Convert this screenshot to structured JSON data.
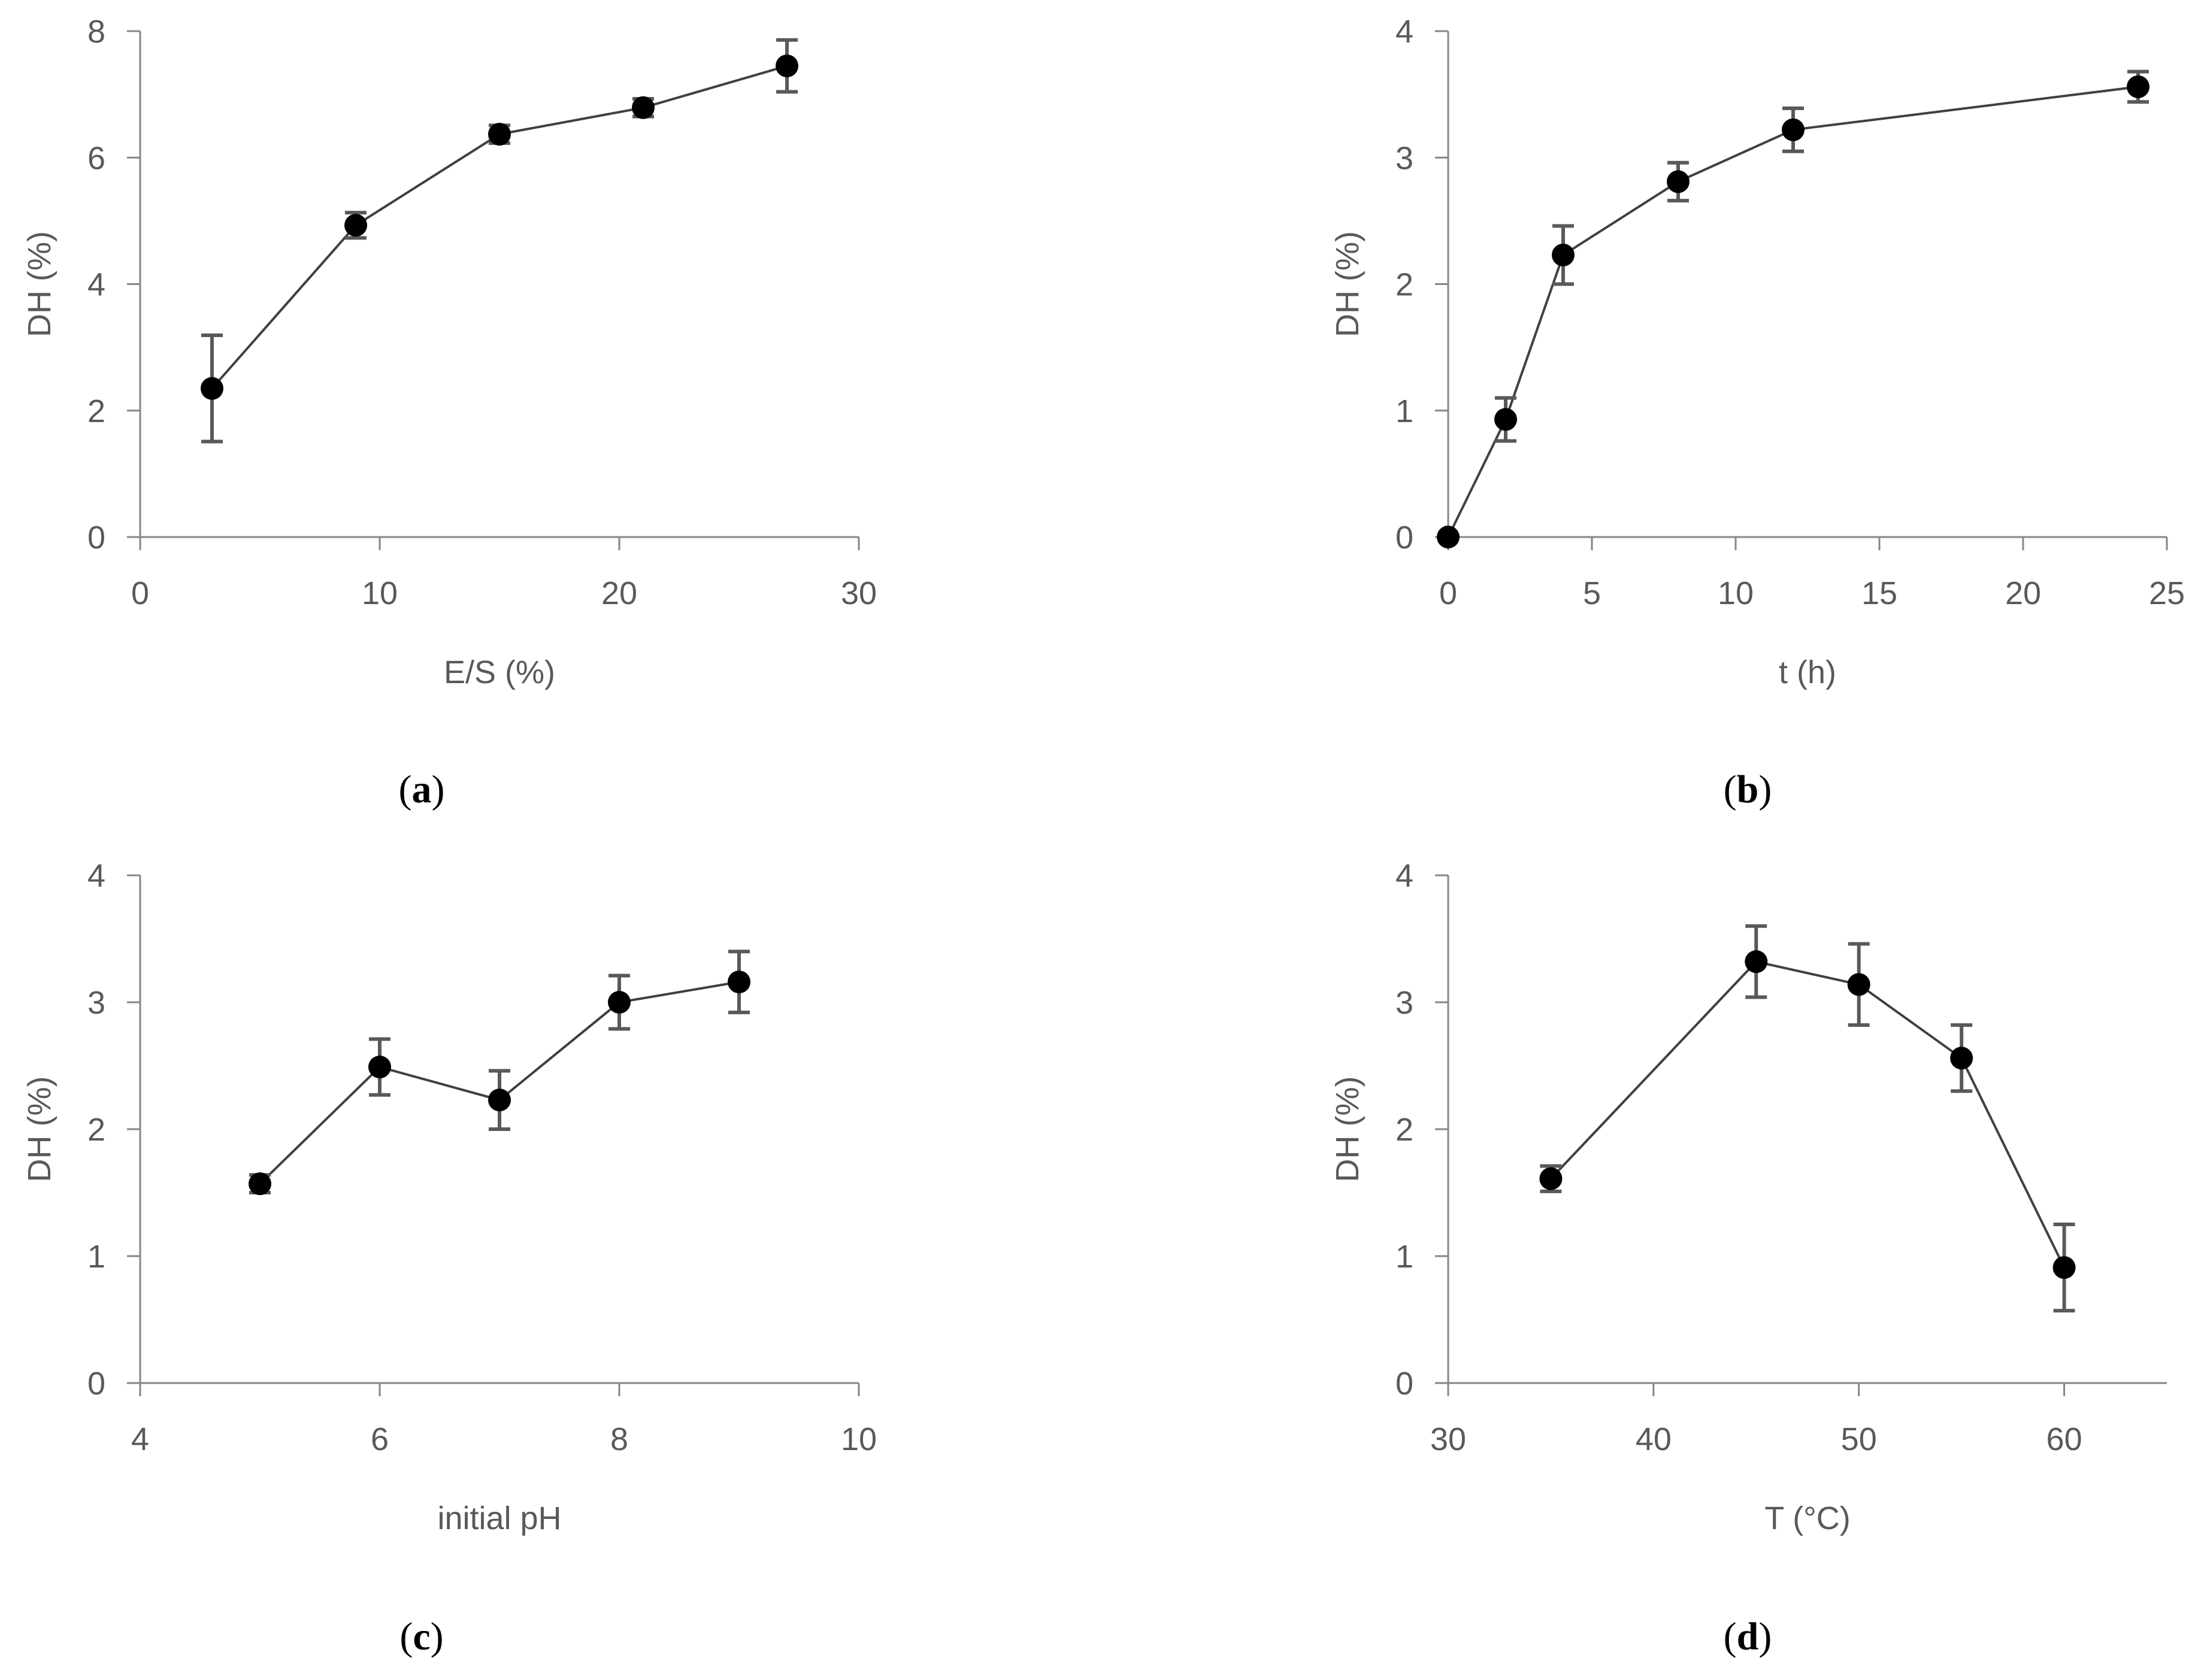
{
  "chart_data": [
    {
      "type": "line",
      "panel": "a",
      "xlabel": "E/S (%)",
      "ylabel": "DH (%)",
      "xlim": [
        0,
        30
      ],
      "ylim": [
        0,
        8
      ],
      "xticks": [
        0,
        10,
        20,
        30
      ],
      "yticks": [
        0,
        2,
        4,
        6,
        8
      ],
      "series": [
        {
          "name": "DH",
          "x": [
            3,
            9,
            15,
            21,
            27
          ],
          "values": [
            2.35,
            4.93,
            6.37,
            6.79,
            7.45
          ],
          "errors": [
            0.84,
            0.2,
            0.14,
            0.14,
            0.41
          ]
        }
      ]
    },
    {
      "type": "line",
      "panel": "b",
      "xlabel": "t (h)",
      "ylabel": "DH (%)",
      "xlim": [
        0,
        25
      ],
      "ylim": [
        0,
        4
      ],
      "xticks": [
        0,
        5,
        10,
        15,
        20,
        25
      ],
      "yticks": [
        0,
        1,
        2,
        3,
        4
      ],
      "series": [
        {
          "name": "DH",
          "x": [
            0,
            2,
            4,
            8,
            12,
            24
          ],
          "values": [
            0,
            0.93,
            2.23,
            2.81,
            3.22,
            3.56
          ],
          "errors": [
            0,
            0.17,
            0.23,
            0.15,
            0.17,
            0.12
          ]
        }
      ]
    },
    {
      "type": "line",
      "panel": "c",
      "xlabel": "initial pH",
      "ylabel": "DH (%)",
      "xlim": [
        4,
        10
      ],
      "ylim": [
        0,
        4
      ],
      "xticks": [
        4,
        6,
        8,
        10
      ],
      "yticks": [
        0,
        1,
        2,
        3,
        4
      ],
      "series": [
        {
          "name": "DH",
          "x": [
            5,
            6,
            7,
            8,
            9
          ],
          "values": [
            1.57,
            2.49,
            2.23,
            3.0,
            3.16
          ],
          "errors": [
            0.07,
            0.22,
            0.23,
            0.21,
            0.24
          ]
        }
      ]
    },
    {
      "type": "line",
      "panel": "d",
      "xlabel": "T (°C)",
      "ylabel": "DH (%)",
      "xlim": [
        30,
        65
      ],
      "ylim": [
        0,
        4
      ],
      "xticks": [
        30,
        40,
        50,
        60
      ],
      "yticks": [
        0,
        1,
        2,
        3,
        4
      ],
      "series": [
        {
          "name": "DH",
          "x": [
            35,
            45,
            50,
            55,
            60
          ],
          "values": [
            1.61,
            3.32,
            3.14,
            2.56,
            0.91
          ],
          "errors": [
            0.1,
            0.28,
            0.32,
            0.26,
            0.34
          ]
        }
      ]
    }
  ],
  "captions": [
    {
      "open": "(",
      "letter": "a",
      "close": ")"
    },
    {
      "open": "(",
      "letter": "b",
      "close": ")"
    },
    {
      "open": "(",
      "letter": "c",
      "close": ")"
    },
    {
      "open": "(",
      "letter": "d",
      "close": ")"
    }
  ],
  "colors": {
    "axis": "#868686",
    "line": "#404040",
    "marker": "#000000",
    "errorbar": "#595959",
    "text": "#595959"
  }
}
